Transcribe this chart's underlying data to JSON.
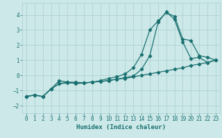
{
  "xlabel": "Humidex (Indice chaleur)",
  "ylabel": "",
  "background_color": "#cce8e8",
  "grid_color": "#aacfcf",
  "line_color": "#1a7070",
  "x_values": [
    0,
    1,
    2,
    3,
    4,
    5,
    6,
    7,
    8,
    9,
    10,
    11,
    12,
    13,
    14,
    15,
    16,
    17,
    18,
    19,
    20,
    21,
    22,
    23
  ],
  "line1": [
    -1.4,
    -1.3,
    -1.4,
    -0.9,
    -0.55,
    -0.45,
    -0.55,
    -0.5,
    -0.45,
    -0.35,
    -0.2,
    -0.1,
    0.1,
    0.5,
    1.4,
    3.0,
    3.6,
    4.15,
    3.9,
    2.4,
    2.3,
    1.3,
    1.2,
    1.0
  ],
  "line2": [
    -1.4,
    -1.3,
    -1.4,
    -0.9,
    -0.35,
    -0.45,
    -0.45,
    -0.5,
    -0.45,
    -0.4,
    -0.35,
    -0.25,
    -0.15,
    -0.05,
    0.4,
    1.3,
    3.5,
    4.2,
    3.7,
    2.2,
    1.1,
    1.2,
    0.85,
    1.0
  ],
  "line3": [
    -1.4,
    -1.3,
    -1.4,
    -0.9,
    -0.55,
    -0.5,
    -0.5,
    -0.5,
    -0.45,
    -0.4,
    -0.35,
    -0.25,
    -0.2,
    -0.1,
    0.0,
    0.1,
    0.2,
    0.3,
    0.4,
    0.5,
    0.65,
    0.75,
    0.85,
    1.0
  ],
  "xlim": [
    -0.5,
    23.5
  ],
  "ylim": [
    -2.5,
    4.8
  ],
  "yticks": [
    -2,
    -1,
    0,
    1,
    2,
    3,
    4
  ],
  "xticks": [
    0,
    1,
    2,
    3,
    4,
    5,
    6,
    7,
    8,
    9,
    10,
    11,
    12,
    13,
    14,
    15,
    16,
    17,
    18,
    19,
    20,
    21,
    22,
    23
  ],
  "marker": "D",
  "markersize": 2.2,
  "linewidth": 0.9,
  "axis_fontsize": 6.5,
  "tick_fontsize": 5.5
}
